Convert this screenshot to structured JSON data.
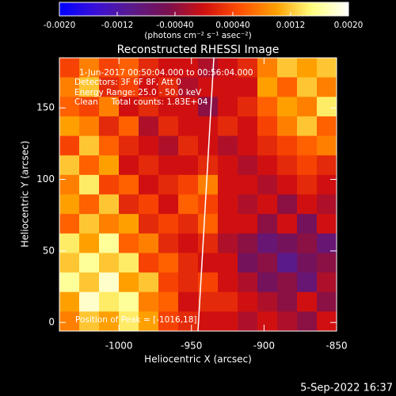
{
  "chart_data": {
    "type": "heatmap",
    "title": "Reconstructed RHESSI Image",
    "x_label": "Heliocentric X (arcsec)",
    "y_label": "Heliocentric Y (arcsec)",
    "xlim": [
      -1041,
      -850
    ],
    "ylim": [
      -6,
      185
    ],
    "xticks": [
      -1000,
      -950,
      -900,
      -850
    ],
    "yticks": [
      0,
      50,
      100,
      150
    ],
    "colormap": [
      "#0000ff",
      "#3a10d8",
      "#5a1a8a",
      "#7a1050",
      "#d01010",
      "#ff5000",
      "#ffa000",
      "#ffff80",
      "#ffffff"
    ],
    "colorbar": {
      "lim": [
        -0.002,
        0.002
      ],
      "ticks": [
        {
          "value": -0.002,
          "label": "-0.0020"
        },
        -0.0012,
        {
          "value": -0.0004,
          "label": "-0.00040"
        },
        {
          "value": 0.0004,
          "label": "0.00040"
        },
        0.0012,
        {
          "value": 0.002,
          "label": "0.0020"
        }
      ],
      "label": "(photons cm⁻² s⁻¹ asec⁻²)"
    },
    "annotations": [
      "1-Jun-2017 00:50:04.000 to 00:56:04.000",
      "Detectors: 3F 6F 8F, Att 0",
      "Energy Range: 25.0 - 50.0 keV",
      "Clean     Total counts: 1.83E+04",
      "Position of Peak = [-1016,18]"
    ],
    "footer": "5-Sep-2022 16:37",
    "z": [
      [
        0.0004,
        0.0008,
        0.0004,
        0.0006,
        0.0002,
        0,
        0,
        -0.0002,
        0,
        0.0002,
        0.0008,
        0.0012,
        0.001,
        0.0012
      ],
      [
        0.0008,
        0.0012,
        0.0002,
        0.0004,
        0,
        0.0002,
        -0.0002,
        0,
        0,
        0,
        0.001,
        0.0006,
        0.0012,
        0.0008
      ],
      [
        0.0006,
        0.0004,
        0.0008,
        0,
        0.0002,
        0,
        0,
        -0.0004,
        0,
        0.0002,
        0.0006,
        0.001,
        0.0008,
        0.0014
      ],
      [
        0.001,
        0.0008,
        0.0002,
        0.0006,
        -0.0002,
        0.0002,
        0,
        0,
        0.0002,
        0,
        0.0004,
        0.0008,
        0.0012,
        0.0006
      ],
      [
        0.0004,
        0.0012,
        0.0006,
        0.0002,
        0,
        -0.0002,
        0.0002,
        0,
        -0.0002,
        0,
        0.0002,
        0.0004,
        0.0006,
        0.0008
      ],
      [
        0.0012,
        0.0006,
        0.001,
        0,
        0.0002,
        0,
        0,
        0.0002,
        0,
        -0.0002,
        0,
        0.0002,
        0.0004,
        0.0002
      ],
      [
        0.0008,
        0.0014,
        0.0004,
        0.0006,
        0,
        0.0002,
        0.0004,
        0.0008,
        0,
        0,
        -0.0002,
        0,
        0.0002,
        0
      ],
      [
        0.001,
        0.0006,
        0.0012,
        0.0002,
        0.0004,
        0,
        0.0006,
        0.0004,
        0,
        -0.0002,
        0,
        -0.0004,
        0,
        -0.0002
      ],
      [
        0.0006,
        0.0012,
        0.0008,
        0.001,
        0.0002,
        0.0004,
        0.0002,
        0.0006,
        0,
        0,
        -0.0004,
        0,
        -0.0006,
        0
      ],
      [
        0.0014,
        0.001,
        0.0016,
        0.0006,
        0.0008,
        0.0002,
        0,
        0.0002,
        -0.0002,
        -0.0004,
        -0.0008,
        -0.0006,
        -0.0004,
        -0.0008
      ],
      [
        0.0012,
        0.0016,
        0.0012,
        0.0014,
        0.0004,
        0.0006,
        0.0002,
        0,
        0,
        -0.0006,
        -0.0004,
        -0.001,
        -0.0006,
        -0.0004
      ],
      [
        0.0016,
        0.0012,
        0.0018,
        0.001,
        0.0012,
        0.0004,
        0.0002,
        0.0004,
        0,
        -0.0002,
        -0.0006,
        -0.0004,
        -0.0008,
        -0.0002
      ],
      [
        0.001,
        0.0018,
        0.0014,
        0.0016,
        0.0008,
        0.0006,
        0,
        0.0002,
        0.0002,
        0,
        -0.0002,
        -0.0004,
        0,
        -0.0004
      ],
      [
        0.0008,
        0.0012,
        0.001,
        0.0014,
        0.001,
        0.0004,
        0.0002,
        0,
        0,
        -0.0002,
        0,
        -0.0002,
        -0.0004,
        0
      ]
    ]
  }
}
